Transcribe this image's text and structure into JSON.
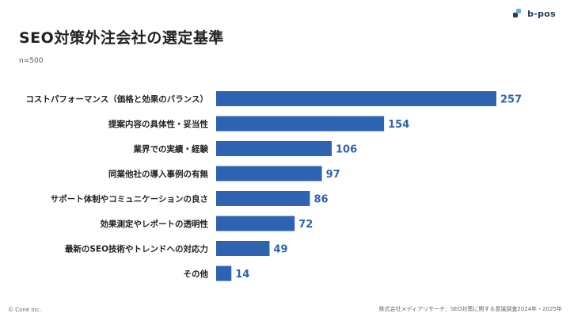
{
  "header": {
    "title": "SEO対策外注会社の選定基準",
    "sample_size": "n=500"
  },
  "logo": {
    "text": "b-pos",
    "icon": "b-pos-logo-icon"
  },
  "footer": {
    "copyright": "© Cone Inc.",
    "source": "株式会社メディアリサーチ：SEO対策に関する意識調査2024年・2025年"
  },
  "colors": {
    "bar": "#2e63b1",
    "value_text": "#2e63b1",
    "logo_dark": "#1f3a5f",
    "logo_light": "#5fb3d9"
  },
  "chart_data": {
    "type": "bar",
    "orientation": "horizontal",
    "categories": [
      "コストパフォーマンス（価格と効果のバランス）",
      "提案内容の具体性・妥当性",
      "業界での実績・経験",
      "同業他社の導入事例の有無",
      "サポート体制やコミュニケーションの良さ",
      "効果測定やレポートの透明性",
      "最新のSEO技術やトレンドへの対応力",
      "その他"
    ],
    "values": [
      257,
      154,
      106,
      97,
      86,
      72,
      49,
      14
    ],
    "xlim": [
      0,
      257
    ],
    "grid": false,
    "legend": "none"
  }
}
